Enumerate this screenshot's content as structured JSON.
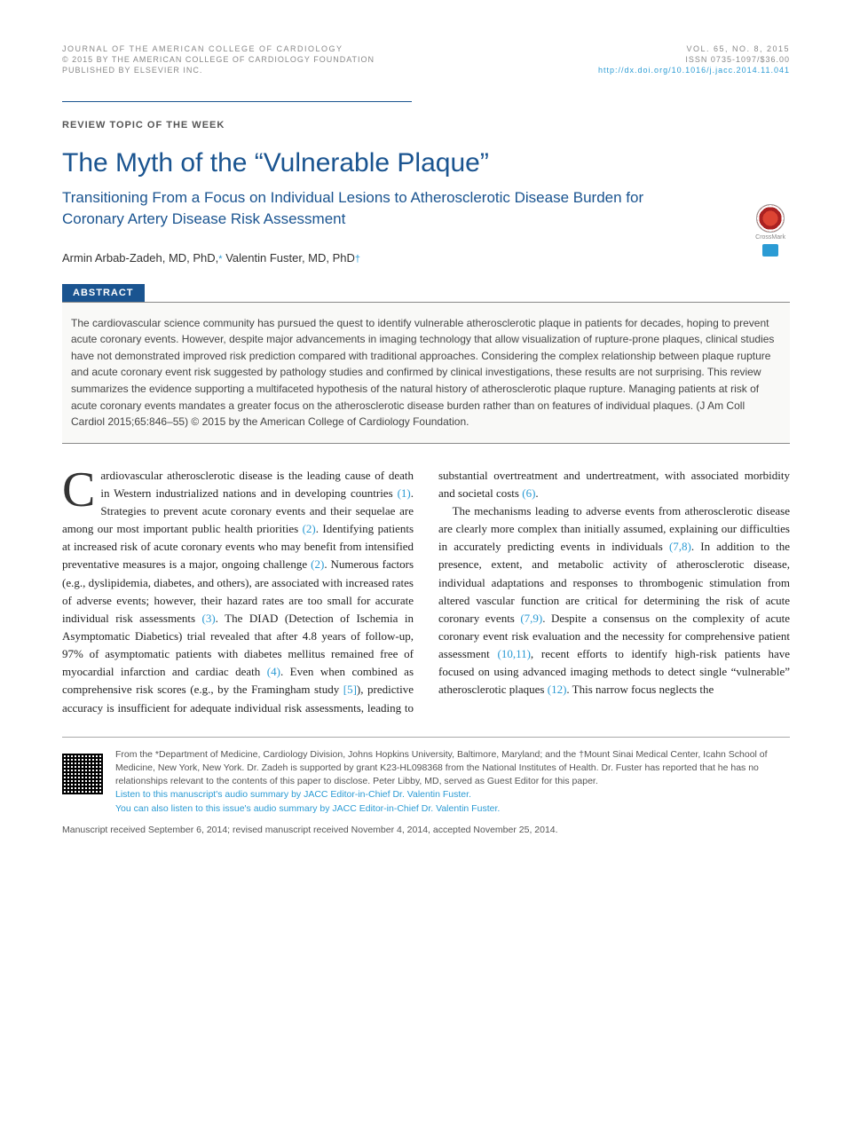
{
  "header": {
    "journal": "JOURNAL OF THE AMERICAN COLLEGE OF CARDIOLOGY",
    "volume": "VOL. 65, NO. 8, 2015",
    "copyright": "© 2015 BY THE AMERICAN COLLEGE OF CARDIOLOGY FOUNDATION",
    "issn": "ISSN 0735-1097/$36.00",
    "publisher": "PUBLISHED BY ELSEVIER INC.",
    "doi": "http://dx.doi.org/10.1016/j.jacc.2014.11.041"
  },
  "article": {
    "section": "REVIEW TOPIC OF THE WEEK",
    "title": "The Myth of the “Vulnerable Plaque”",
    "subtitle": "Transitioning From a Focus on Individual Lesions to Atherosclerotic Disease Burden for Coronary Artery Disease Risk Assessment",
    "authors_html": "Armin Arbab-Zadeh, MD, PhD,<span class=\"author-sup\">*</span> Valentin Fuster, MD, PhD<span class=\"author-sup\">†</span>"
  },
  "abstract": {
    "label": "ABSTRACT",
    "text": "The cardiovascular science community has pursued the quest to identify vulnerable atherosclerotic plaque in patients for decades, hoping to prevent acute coronary events. However, despite major advancements in imaging technology that allow visualization of rupture-prone plaques, clinical studies have not demonstrated improved risk prediction compared with traditional approaches. Considering the complex relationship between plaque rupture and acute coronary event risk suggested by pathology studies and confirmed by clinical investigations, these results are not surprising. This review summarizes the evidence supporting a multifaceted hypothesis of the natural history of atherosclerotic plaque rupture. Managing patients at risk of acute coronary events mandates a greater focus on the atherosclerotic disease burden rather than on features of individual plaques. (J Am Coll Cardiol 2015;65:846–55) © 2015 by the American College of Cardiology Foundation."
  },
  "body": {
    "p1_html": "<span class=\"dropcap\">C</span>ardiovascular atherosclerotic disease is the leading cause of death in Western industrialized nations and in developing countries <span class=\"ref-link\">(1)</span>. Strategies to prevent acute coronary events and their sequelae are among our most important public health priorities <span class=\"ref-link\">(2)</span>. Identifying patients at increased risk of acute coronary events who may benefit from intensified preventative measures is a major, ongoing challenge <span class=\"ref-link\">(2)</span>. Numerous factors (e.g., dyslipidemia, diabetes, and others), are associated with increased rates of adverse events; however, their hazard rates are too small for accurate individual risk assessments <span class=\"ref-link\">(3)</span>. The DIAD (Detection of Ischemia in Asymptomatic Diabetics) trial revealed that after 4.8 years of follow-up, 97% of asymptomatic patients with diabetes mellitus remained free of myocardial infarction and cardiac death <span class=\"ref-link\">(4)</span>. Even when combined as comprehensive risk scores (e.g., by the Framingham study <span class=\"ref-link\">[5]</span>), predictive accuracy is insufficient for adequate individual risk assessments, leading to substantial overtreatment and undertreatment, with associated morbidity and societal costs <span class=\"ref-link\">(6)</span>.",
    "p2_html": "The mechanisms leading to adverse events from atherosclerotic disease are clearly more complex than initially assumed, explaining our difficulties in accurately predicting events in individuals <span class=\"ref-link\">(7,8)</span>. In addition to the presence, extent, and metabolic activity of atherosclerotic disease, individual adaptations and responses to thrombogenic stimulation from altered vascular function are critical for determining the risk of acute coronary events <span class=\"ref-link\">(7,9)</span>. Despite a consensus on the complexity of acute coronary event risk evaluation and the necessity for comprehensive patient assessment <span class=\"ref-link\">(10,11)</span>, recent efforts to identify high-risk patients have focused on using advanced imaging methods to detect single “vulnerable” atherosclerotic plaques <span class=\"ref-link\">(12)</span>. This narrow focus neglects the"
  },
  "footer": {
    "affiliations": "From the *Department of Medicine, Cardiology Division, Johns Hopkins University, Baltimore, Maryland; and the †Mount Sinai Medical Center, Icahn School of Medicine, New York, New York. Dr. Zadeh is supported by grant K23-HL098368 from the National Institutes of Health. Dr. Fuster has reported that he has no relationships relevant to the contents of this paper to disclose. Peter Libby, MD, served as Guest Editor for this paper.",
    "audio1": "Listen to this manuscript's audio summary by JACC Editor-in-Chief Dr. Valentin Fuster.",
    "audio2": "You can also listen to this issue's audio summary by JACC Editor-in-Chief Dr. Valentin Fuster.",
    "dates": "Manuscript received September 6, 2014; revised manuscript received November 4, 2014, accepted November 25, 2014."
  },
  "crossmark_label": "CrossMark",
  "colors": {
    "brand_blue": "#1a5490",
    "link_blue": "#2b9bd4",
    "muted": "#888888"
  }
}
